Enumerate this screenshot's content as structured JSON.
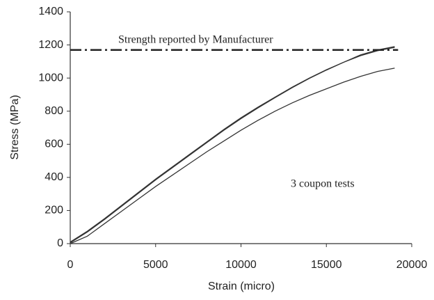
{
  "chart_data": {
    "type": "line",
    "xlabel": "Strain (micro)",
    "ylabel": "Stress (MPa)",
    "annotations": [
      "Strength reported by Manufacturer",
      "3 coupon tests"
    ],
    "x": [
      0,
      1000,
      2000,
      3000,
      4000,
      5000,
      6000,
      7000,
      8000,
      9000,
      10000,
      11000,
      12000,
      13000,
      14000,
      15000,
      16000,
      17000,
      18000,
      19000
    ],
    "series": [
      {
        "color": "#333333",
        "values": [
          10,
          75,
          150,
          230,
          310,
          390,
          465,
          540,
          615,
          690,
          760,
          825,
          885,
          945,
          1000,
          1050,
          1095,
          1135,
          1165,
          1185
        ]
      },
      {
        "color": "#333333",
        "values": [
          5,
          70,
          145,
          225,
          305,
          385,
          460,
          535,
          610,
          685,
          755,
          820,
          882,
          942,
          998,
          1048,
          1095,
          1140,
          1170,
          1190
        ]
      },
      {
        "color": "#333333",
        "values": [
          0,
          45,
          120,
          195,
          270,
          345,
          415,
          485,
          555,
          620,
          685,
          745,
          800,
          850,
          895,
          935,
          975,
          1010,
          1040,
          1060
        ]
      }
    ],
    "reference": {
      "y": 1170,
      "x": [
        0,
        19200
      ],
      "color": "#222222",
      "dash": "dashdot"
    },
    "xlim": [
      0,
      20000
    ],
    "xticks": [
      0,
      5000,
      10000,
      15000,
      20000
    ],
    "ylim": [
      0,
      1400
    ],
    "yticks": [
      0,
      200,
      400,
      600,
      800,
      1000,
      1200,
      1400
    ],
    "grid": false
  }
}
